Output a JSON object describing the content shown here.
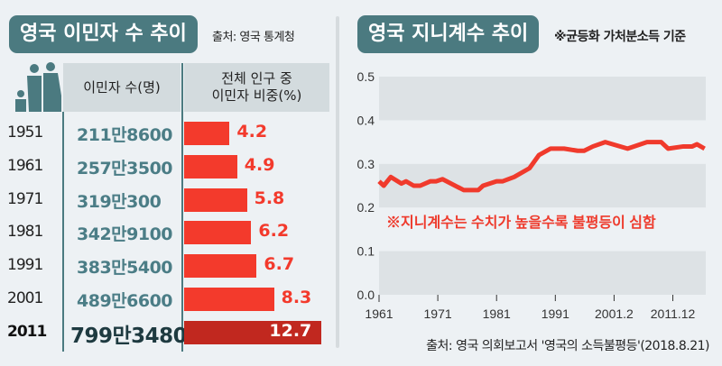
{
  "left": {
    "title": "영국 이민자 수 추이",
    "source": "출처: 영국 통계청",
    "col_count": "이민자 수(명)",
    "col_share_line1": "전체 인구 중",
    "col_share_line2": "이민자 비중(%)",
    "rows": [
      {
        "year": "1951",
        "count": "211만8600",
        "share": 4.2,
        "share_label": "4.2"
      },
      {
        "year": "1961",
        "count": "257만3500",
        "share": 4.9,
        "share_label": "4.9"
      },
      {
        "year": "1971",
        "count": "319만300",
        "share": 5.8,
        "share_label": "5.8"
      },
      {
        "year": "1981",
        "count": "342만9100",
        "share": 6.2,
        "share_label": "6.2"
      },
      {
        "year": "1991",
        "count": "383만5400",
        "share": 6.7,
        "share_label": "6.7"
      },
      {
        "year": "2001",
        "count": "489만6600",
        "share": 8.3,
        "share_label": "8.3"
      },
      {
        "year": "2011",
        "count": "799만3480",
        "share": 12.7,
        "share_label": "12.7"
      }
    ]
  },
  "right": {
    "title": "영국 지니계수 추이",
    "basis_note": "※균등화 가처분소득 기준",
    "source": "출처: 영국 의회보고서 '영국의 소득불평등'(2018.8.21)"
  },
  "colors": {
    "teal": "#4b7a80",
    "red": "#f33a2c",
    "dark_red": "#c1281f"
  },
  "chart_data": {
    "type": "line",
    "title": "영국 지니계수 추이",
    "annotation": "※지니계수는 수치가 높을수록 불평등이 심함",
    "x_ticks": [
      {
        "value": 1961,
        "label": "1961"
      },
      {
        "value": 1971,
        "label": "1971"
      },
      {
        "value": 1981,
        "label": "1981"
      },
      {
        "value": 1991,
        "label": "1991"
      },
      {
        "value": 2001,
        "label": "2001.2"
      },
      {
        "value": 2011,
        "label": "2011.12"
      }
    ],
    "y_ticks": [
      "0.0",
      "0.1",
      "0.2",
      "0.3",
      "0.4",
      "0.5"
    ],
    "xlim": [
      1961,
      2016.6
    ],
    "ylim": [
      0,
      0.5
    ],
    "series": [
      {
        "name": "지니계수",
        "x": [
          1961,
          1961.8,
          1963,
          1964.8,
          1965.6,
          1966.9,
          1968,
          1969.7,
          1970.7,
          1971.8,
          1975.4,
          1976.9,
          1977.9,
          1978.7,
          1981,
          1982,
          1984,
          1986.6,
          1988.2,
          1990.2,
          1992.5,
          1994.8,
          1995.9,
          1997.4,
          1999.5,
          2003.3,
          2006.6,
          2009,
          2010.2,
          2012.8,
          2014.3,
          2015.1,
          2016.4
        ],
        "y": [
          0.26,
          0.25,
          0.27,
          0.255,
          0.26,
          0.25,
          0.25,
          0.26,
          0.26,
          0.265,
          0.24,
          0.24,
          0.24,
          0.25,
          0.26,
          0.26,
          0.27,
          0.29,
          0.32,
          0.335,
          0.335,
          0.33,
          0.33,
          0.34,
          0.35,
          0.335,
          0.35,
          0.35,
          0.335,
          0.34,
          0.34,
          0.345,
          0.335
        ]
      }
    ]
  }
}
